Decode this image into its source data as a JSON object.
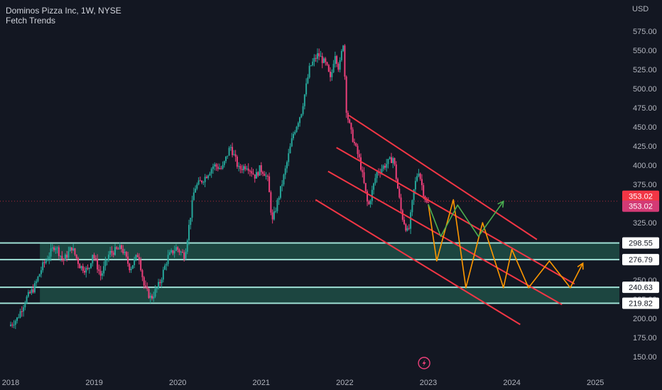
{
  "header": {
    "title": "Dominos Pizza Inc, 1W, NYSE",
    "indicator": "Fetch Trends",
    "currency": "USD"
  },
  "colors": {
    "background": "#131722",
    "up": "#26a69a",
    "down": "#ec407a",
    "channel": "#f23645",
    "zone_fill": "#1f4d45",
    "zone_border": "#9fe0d5",
    "path_green": "#4caf50",
    "path_orange": "#ff9800",
    "price_tag": "#f23645"
  },
  "chart_data": {
    "type": "candlestick",
    "symbol": "Dominos Pizza Inc",
    "interval": "1W",
    "exchange": "NYSE",
    "x_axis": {
      "ticks": [
        "2018",
        "2019",
        "2020",
        "2021",
        "2022",
        "2023",
        "2024",
        "2025"
      ],
      "tick_values": [
        2018,
        2019,
        2020,
        2021,
        2022,
        2023,
        2024,
        2025
      ],
      "range": [
        2018.0,
        2025.78
      ]
    },
    "y_axis": {
      "ticks": [
        "150.00",
        "175.00",
        "200.00",
        "225.00",
        "250.00",
        "275.00",
        "300.00",
        "325.00",
        "350.00",
        "375.00",
        "400.00",
        "425.00",
        "450.00",
        "475.00",
        "500.00",
        "525.00",
        "550.00",
        "575.00"
      ],
      "range": [
        140,
        595
      ]
    },
    "anchors": [
      [
        2018.0,
        190
      ],
      [
        2018.1,
        200
      ],
      [
        2018.2,
        225
      ],
      [
        2018.3,
        240
      ],
      [
        2018.4,
        268
      ],
      [
        2018.55,
        296
      ],
      [
        2018.65,
        275
      ],
      [
        2018.75,
        293
      ],
      [
        2018.85,
        268
      ],
      [
        2018.95,
        262
      ],
      [
        2019.0,
        285
      ],
      [
        2019.1,
        255
      ],
      [
        2019.2,
        285
      ],
      [
        2019.35,
        292
      ],
      [
        2019.45,
        265
      ],
      [
        2019.55,
        285
      ],
      [
        2019.62,
        240
      ],
      [
        2019.7,
        226
      ],
      [
        2019.8,
        245
      ],
      [
        2019.9,
        280
      ],
      [
        2020.0,
        292
      ],
      [
        2020.1,
        282
      ],
      [
        2020.12,
        295
      ],
      [
        2020.22,
        370
      ],
      [
        2020.35,
        385
      ],
      [
        2020.45,
        400
      ],
      [
        2020.55,
        395
      ],
      [
        2020.65,
        425
      ],
      [
        2020.75,
        395
      ],
      [
        2020.85,
        400
      ],
      [
        2020.95,
        385
      ],
      [
        2021.0,
        395
      ],
      [
        2021.05,
        392
      ],
      [
        2021.1,
        380
      ],
      [
        2021.15,
        325
      ],
      [
        2021.3,
        390
      ],
      [
        2021.4,
        440
      ],
      [
        2021.5,
        470
      ],
      [
        2021.6,
        528
      ],
      [
        2021.7,
        545
      ],
      [
        2021.8,
        530
      ],
      [
        2021.85,
        510
      ],
      [
        2021.9,
        548
      ],
      [
        2021.95,
        525
      ],
      [
        2022.0,
        560
      ],
      [
        2022.04,
        470
      ],
      [
        2022.1,
        440
      ],
      [
        2022.2,
        405
      ],
      [
        2022.3,
        345
      ],
      [
        2022.4,
        390
      ],
      [
        2022.5,
        400
      ],
      [
        2022.6,
        410
      ],
      [
        2022.7,
        335
      ],
      [
        2022.78,
        310
      ],
      [
        2022.85,
        370
      ],
      [
        2022.9,
        395
      ],
      [
        2022.96,
        365
      ],
      [
        2023.0,
        350
      ]
    ],
    "channel_lines": [
      {
        "from": [
          2022.05,
          465
        ],
        "to": [
          2024.3,
          303
        ]
      },
      {
        "from": [
          2021.9,
          423
        ],
        "to": [
          2024.75,
          245
        ]
      },
      {
        "from": [
          2021.8,
          392
        ],
        "to": [
          2024.6,
          218
        ]
      },
      {
        "from": [
          2021.65,
          355
        ],
        "to": [
          2024.1,
          192
        ]
      }
    ],
    "support_zones": [
      {
        "top": 298.55,
        "bottom": 276.79,
        "start": 2018.35
      },
      {
        "top": 240.63,
        "bottom": 219.82,
        "start": 2018.35
      }
    ],
    "green_projection": [
      [
        2023.0,
        349
      ],
      [
        2023.15,
        307
      ],
      [
        2023.35,
        348
      ],
      [
        2023.6,
        307
      ],
      [
        2023.9,
        353
      ]
    ],
    "orange_projection": [
      [
        2023.0,
        349
      ],
      [
        2023.1,
        275
      ],
      [
        2023.3,
        355
      ],
      [
        2023.45,
        240
      ],
      [
        2023.65,
        325
      ],
      [
        2023.9,
        240
      ],
      [
        2024.0,
        290
      ],
      [
        2024.2,
        240
      ],
      [
        2024.45,
        275
      ],
      [
        2024.7,
        240
      ],
      [
        2024.85,
        272
      ]
    ],
    "price_labels": [
      {
        "value": "353.02",
        "price": 353.02,
        "style": "red"
      },
      {
        "value": "353.02",
        "price": 353.02,
        "style": "pink"
      },
      {
        "value": "298.55",
        "price": 298.55,
        "style": "white"
      },
      {
        "value": "276.79",
        "price": 276.79,
        "style": "white"
      },
      {
        "value": "240.63",
        "price": 240.63,
        "style": "white"
      },
      {
        "value": "219.82",
        "price": 219.82,
        "style": "white"
      }
    ],
    "current_price": 353.02,
    "grid": false
  },
  "lightning_icon": "lightning-icon"
}
